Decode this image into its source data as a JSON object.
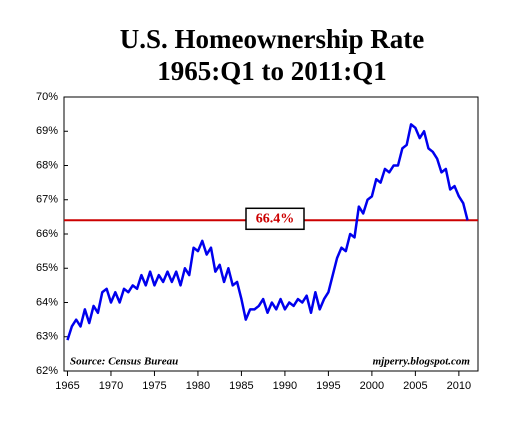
{
  "chart_data": {
    "type": "line",
    "title": [
      "U.S. Homeownership Rate",
      "1965:Q1 to 2011:Q1"
    ],
    "source": "Source: Census Bureau",
    "credit": "mjperry.blogspot.com",
    "x": [
      1965.0,
      1965.5,
      1966.0,
      1966.5,
      1967.0,
      1967.5,
      1968.0,
      1968.5,
      1969.0,
      1969.5,
      1970.0,
      1970.5,
      1971.0,
      1971.5,
      1972.0,
      1972.5,
      1973.0,
      1973.5,
      1974.0,
      1974.5,
      1975.0,
      1975.5,
      1976.0,
      1976.5,
      1977.0,
      1977.5,
      1978.0,
      1978.5,
      1979.0,
      1979.5,
      1980.0,
      1980.5,
      1981.0,
      1981.5,
      1982.0,
      1982.5,
      1983.0,
      1983.5,
      1984.0,
      1984.5,
      1985.0,
      1985.5,
      1986.0,
      1986.5,
      1987.0,
      1987.5,
      1988.0,
      1988.5,
      1989.0,
      1989.5,
      1990.0,
      1990.5,
      1991.0,
      1991.5,
      1992.0,
      1992.5,
      1993.0,
      1993.5,
      1994.0,
      1994.5,
      1995.0,
      1995.5,
      1996.0,
      1996.5,
      1997.0,
      1997.5,
      1998.0,
      1998.5,
      1999.0,
      1999.5,
      2000.0,
      2000.5,
      2001.0,
      2001.5,
      2002.0,
      2002.5,
      2003.0,
      2003.5,
      2004.0,
      2004.5,
      2005.0,
      2005.5,
      2006.0,
      2006.5,
      2007.0,
      2007.5,
      2008.0,
      2008.5,
      2009.0,
      2009.5,
      2010.0,
      2010.5,
      2011.0
    ],
    "series": [
      {
        "name": "Homeownership Rate",
        "color": "#0000ee",
        "values": [
          62.9,
          63.3,
          63.5,
          63.3,
          63.8,
          63.4,
          63.9,
          63.7,
          64.3,
          64.4,
          64.0,
          64.3,
          64.0,
          64.4,
          64.3,
          64.5,
          64.4,
          64.8,
          64.5,
          64.9,
          64.5,
          64.8,
          64.6,
          64.9,
          64.6,
          64.9,
          64.5,
          65.0,
          64.8,
          65.6,
          65.5,
          65.8,
          65.4,
          65.6,
          64.9,
          65.1,
          64.6,
          65.0,
          64.5,
          64.6,
          64.1,
          63.5,
          63.8,
          63.8,
          63.9,
          64.1,
          63.7,
          64.0,
          63.8,
          64.1,
          63.8,
          64.0,
          63.9,
          64.1,
          64.0,
          64.2,
          63.7,
          64.3,
          63.8,
          64.1,
          64.3,
          64.8,
          65.3,
          65.6,
          65.5,
          66.0,
          65.9,
          66.8,
          66.6,
          67.0,
          67.1,
          67.6,
          67.5,
          67.9,
          67.8,
          68.0,
          68.0,
          68.5,
          68.6,
          69.2,
          69.1,
          68.8,
          69.0,
          68.5,
          68.4,
          68.2,
          67.8,
          67.9,
          67.3,
          67.4,
          67.1,
          66.9,
          66.4
        ]
      }
    ],
    "reference_line": {
      "value": 66.4,
      "label": "66.4%",
      "color": "#cc0000"
    },
    "xlim": [
      1964.6,
      2012.2
    ],
    "xticks": [
      1965,
      1970,
      1975,
      1980,
      1985,
      1990,
      1995,
      2000,
      2005,
      2010
    ],
    "ylim": [
      62,
      70
    ],
    "yticks": [
      {
        "value": 62,
        "label": "62%"
      },
      {
        "value": 63,
        "label": "63%"
      },
      {
        "value": 64,
        "label": "64%"
      },
      {
        "value": 65,
        "label": "65%"
      },
      {
        "value": 66,
        "label": "66%"
      },
      {
        "value": 67,
        "label": "67%"
      },
      {
        "value": 68,
        "label": "68%"
      },
      {
        "value": 69,
        "label": "69%"
      },
      {
        "value": 70,
        "label": "70%"
      }
    ],
    "grid": false
  }
}
